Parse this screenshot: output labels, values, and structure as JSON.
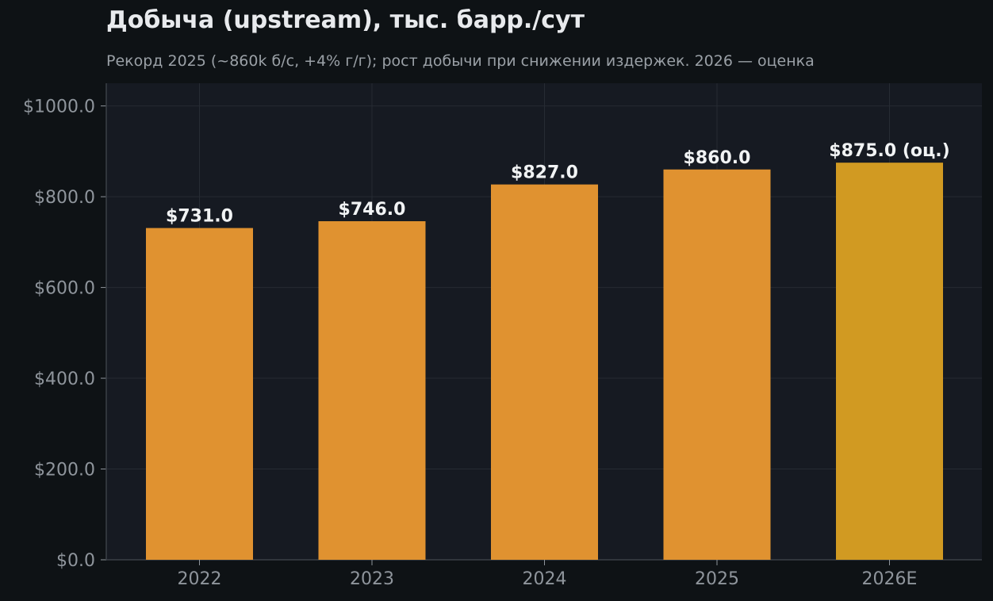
{
  "title": "Добыча (upstream), тыс. барр./сут",
  "subtitle": "Рекорд 2025 (~860k б/с, +4% г/г); рост добычи при снижении издержек. 2026 — оценка",
  "colors": {
    "background": "#0e1215",
    "plot_background": "#161a22",
    "bar_actual": "#e09230",
    "bar_estimate": "#d19a22",
    "grid": "#262b33"
  },
  "chart_data": {
    "type": "bar",
    "title": "Добыча (upstream), тыс. барр./сут",
    "subtitle": "Рекорд 2025 (~860k б/с, +4% г/г); рост добычи при снижении издержек. 2026 — оценка",
    "categories": [
      "2022",
      "2023",
      "2024",
      "2025",
      "2026E"
    ],
    "values": [
      731,
      746,
      827,
      860,
      875
    ],
    "estimate": [
      false,
      false,
      false,
      false,
      true
    ],
    "data_labels": [
      "$731.0",
      "$746.0",
      "$827.0",
      "$860.0",
      "$875.0 (оц.)"
    ],
    "yticks": [
      0,
      200,
      400,
      600,
      800,
      1000
    ],
    "ytick_labels": [
      "$0.0",
      "$200.0",
      "$400.0",
      "$600.0",
      "$800.0",
      "$1000.0"
    ],
    "ylim": [
      0,
      1050
    ],
    "xlabel": "",
    "ylabel": "",
    "grid": true,
    "legend": false
  }
}
